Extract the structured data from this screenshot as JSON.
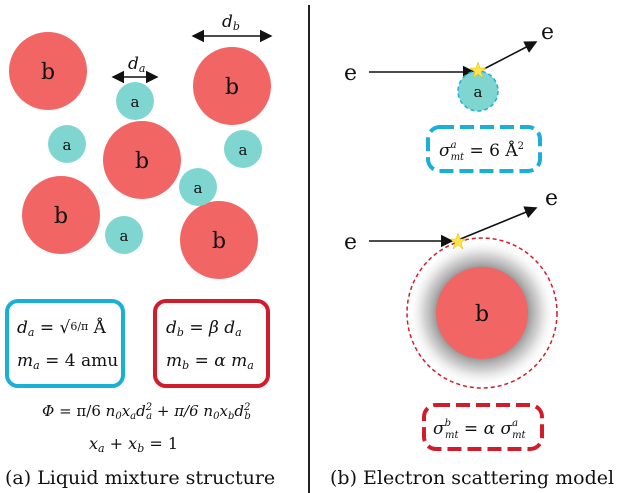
{
  "panel_a": {
    "caption": "(a) Liquid mixture structure",
    "particle_a_label": "a",
    "particle_b_label": "b",
    "dim_a_label": "d_a",
    "dim_b_label": "d_b",
    "box_a_line1": "d_a = √(6/π) Å",
    "box_a_line2": "m_a = 4 amu",
    "box_b_line1": "d_b = β d_a",
    "box_b_line2": "m_b = α m_a",
    "phi_eq": "Φ = (π/6) n₀ x_a d_a² + (π/6) n₀ x_b d_b²",
    "sum_eq": "x_a + x_b = 1"
  },
  "panel_b": {
    "caption": "(b) Electron scattering model",
    "electron_label": "e",
    "particle_a_label": "a",
    "particle_b_label": "b",
    "sigma_a": "σ^a_mt = 6 Å²",
    "sigma_b": "σ^b_mt = α σ^a_mt"
  },
  "colors": {
    "a_fill": "#7fd6d0",
    "b_fill": "#f26565",
    "a_border": "#1ab0d6",
    "b_border": "#d01c2b"
  }
}
